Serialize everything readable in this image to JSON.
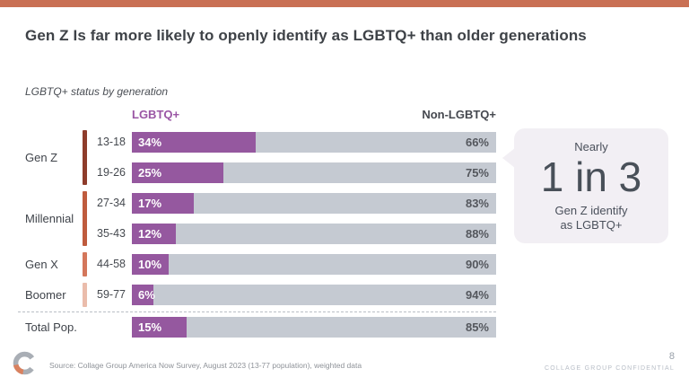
{
  "slide": {
    "title": "Gen Z Is far more likely to openly identify as LGBTQ+ than older generations",
    "subtitle": "LGBTQ+ status by generation",
    "page_number": "8",
    "confidential_label": "COLLAGE GROUP CONFIDENTIAL",
    "source_note": "Source: Collage Group America Now Survey, August 2023 (13-77 population), weighted data"
  },
  "callout": {
    "intro": "Nearly",
    "stat": "1 in 3",
    "caption_line1": "Gen Z identify",
    "caption_line2": "as LGBTQ+"
  },
  "theme": {
    "accent_strip": "#C97054",
    "lgbtq_color": "#95589F",
    "non_lgbtq_color": "#C5CAD2",
    "callout_bg": "#F2EFF4",
    "title_color": "#3E4247",
    "logo_gray": "#A9AEB5",
    "logo_coral": "#D9815F"
  },
  "chart_data": {
    "type": "bar",
    "variant": "horizontal-stacked-100pct",
    "title": "LGBTQ+ status by generation",
    "value_suffix": "%",
    "xlim": [
      0,
      100
    ],
    "col_headers": {
      "left": "LGBTQ+",
      "right": "Non-LGBTQ+"
    },
    "series": [
      {
        "name": "LGBTQ+",
        "color": "#95589F"
      },
      {
        "name": "Non-LGBTQ+",
        "color": "#C5CAD2"
      }
    ],
    "groups": [
      {
        "generation": "Gen Z",
        "strip_color": "#8E3C2B",
        "rows": [
          {
            "age": "13-18",
            "lgbtq_pct": 34,
            "non_lgbtq_pct": 66
          },
          {
            "age": "19-26",
            "lgbtq_pct": 25,
            "non_lgbtq_pct": 75
          }
        ]
      },
      {
        "generation": "Millennial",
        "strip_color": "#BF5B3D",
        "rows": [
          {
            "age": "27-34",
            "lgbtq_pct": 17,
            "non_lgbtq_pct": 83
          },
          {
            "age": "35-43",
            "lgbtq_pct": 12,
            "non_lgbtq_pct": 88
          }
        ]
      },
      {
        "generation": "Gen X",
        "strip_color": "#D4775B",
        "rows": [
          {
            "age": "44-58",
            "lgbtq_pct": 10,
            "non_lgbtq_pct": 90
          }
        ]
      },
      {
        "generation": "Boomer",
        "strip_color": "#EABCAB",
        "rows": [
          {
            "age": "59-77",
            "lgbtq_pct": 6,
            "non_lgbtq_pct": 94
          }
        ]
      }
    ],
    "total_row": {
      "label": "Total Pop.",
      "lgbtq_pct": 15,
      "non_lgbtq_pct": 85
    }
  }
}
